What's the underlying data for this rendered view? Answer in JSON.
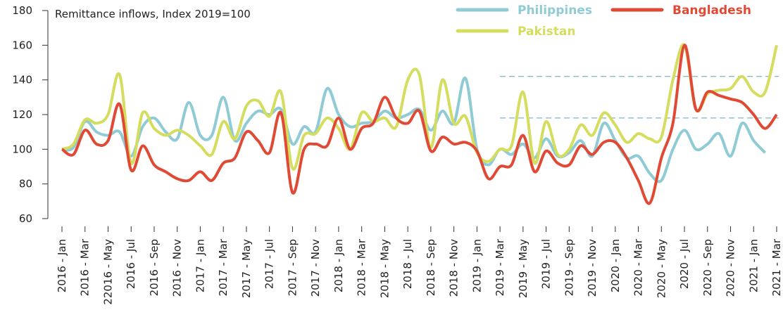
{
  "chart_data": {
    "type": "line",
    "title": "Remittance inflows, Index 2019=100",
    "categories": [
      "2016 - Jan",
      null,
      "2016 - Mar",
      null,
      "22016 - May",
      null,
      "2016 - Jul",
      null,
      "2016 - Sep",
      null,
      "2016 - Nov",
      null,
      "2017 - Jan",
      null,
      "2017 - Mar",
      null,
      "2017 - May",
      null,
      "2017 - Jul",
      null,
      "2017 - Sep",
      null,
      "2017 - Nov",
      null,
      "2018 - Jan",
      null,
      "2018 - Mar",
      null,
      "2018 - May",
      null,
      "2018 - Jul",
      null,
      "2018 - Sep",
      null,
      "2018 - Nov",
      null,
      "2019 - Jan",
      null,
      "2019 - Mar",
      null,
      "2019 - May",
      null,
      "2019 - Jul",
      null,
      "2019 - Sep",
      null,
      "2019 - Nov",
      null,
      "2020 - Jan",
      null,
      "2020 - Mar",
      null,
      "2020 - May",
      null,
      "2020 - Jul",
      null,
      "2020 - Sep",
      null,
      "2020 - Nov",
      null,
      "2021 - Jan",
      null,
      "2021 - Mar"
    ],
    "series": [
      {
        "name": "Philippines",
        "color": "#8fcbd4",
        "values": [
          100,
          101,
          116,
          110,
          108,
          110,
          96,
          113,
          118,
          110,
          106,
          127,
          108,
          108,
          130,
          105,
          115,
          122,
          120,
          123,
          103,
          113,
          110,
          135,
          120,
          113,
          115,
          116,
          122,
          118,
          120,
          123,
          111,
          122,
          115,
          141,
          100,
          91,
          100,
          97,
          103,
          95,
          106,
          96,
          98,
          105,
          96,
          115,
          105,
          95,
          96,
          86,
          82,
          100,
          111,
          100,
          103,
          109,
          96,
          115,
          105,
          98,
          null
        ]
      },
      {
        "name": "Pakistan",
        "color": "#d5dd5e",
        "values": [
          100,
          103,
          117,
          115,
          120,
          143,
          92,
          121,
          112,
          108,
          111,
          108,
          102,
          97,
          116,
          106,
          125,
          128,
          119,
          133,
          89,
          108,
          109,
          118,
          112,
          100,
          121,
          116,
          118,
          113,
          140,
          143,
          101,
          140,
          115,
          119,
          98,
          93,
          100,
          102,
          133,
          92,
          116,
          97,
          100,
          114,
          108,
          121,
          114,
          104,
          109,
          106,
          107,
          140,
          160,
          123,
          132,
          134,
          135,
          142,
          133,
          133,
          160
        ]
      },
      {
        "name": "Bangladesh",
        "color": "#e04a35",
        "values": [
          100,
          97,
          111,
          103,
          105,
          126,
          88,
          102,
          91,
          87,
          83,
          82,
          87,
          82,
          92,
          95,
          110,
          105,
          98,
          121,
          75,
          100,
          103,
          102,
          118,
          100,
          112,
          115,
          130,
          118,
          115,
          122,
          99,
          107,
          103,
          104,
          99,
          83,
          90,
          91,
          108,
          87,
          99,
          92,
          91,
          102,
          97,
          104,
          104,
          95,
          82,
          69,
          95,
          115,
          160,
          123,
          133,
          131,
          129,
          127,
          120,
          112,
          120
        ]
      }
    ],
    "hlines": [
      {
        "value": 142,
        "start": 38
      },
      {
        "value": 118,
        "start": 38
      }
    ],
    "ylim": [
      60,
      180
    ],
    "yticks": [
      60,
      80,
      100,
      120,
      140,
      160,
      180
    ]
  }
}
